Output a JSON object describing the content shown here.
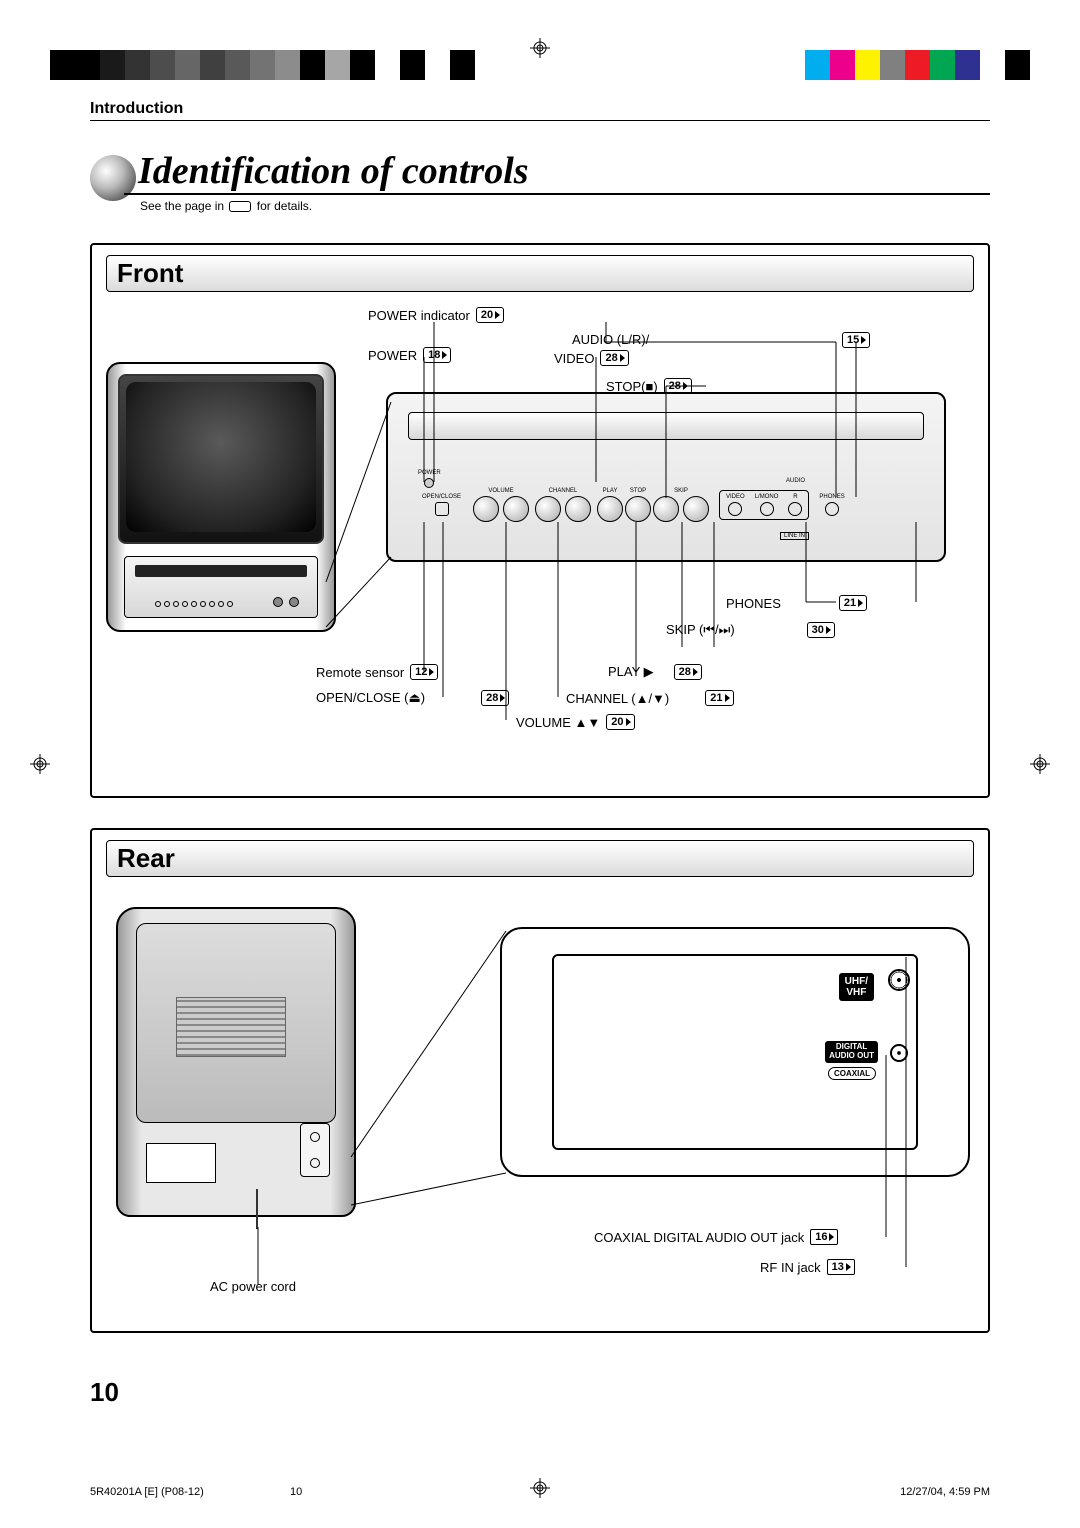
{
  "colorbar": {
    "left": [
      "#000000",
      "#000000",
      "#1a1a1a",
      "#333333",
      "#4d4d4d",
      "#666666",
      "#404040",
      "#595959",
      "#737373",
      "#8c8c8c",
      "#000000",
      "#a6a6a6",
      "#000000",
      "#ffffff",
      "#000000",
      "#ffffff",
      "#000000"
    ],
    "right": [
      "#00aeef",
      "#ec008c",
      "#fff200",
      "#808080",
      "#ed1c24",
      "#00a651",
      "#2e3192",
      "#ffffff",
      "#000000"
    ]
  },
  "header": {
    "section": "Introduction"
  },
  "title": "Identification of controls",
  "see_note": {
    "before": "See the page in",
    "after": "for details."
  },
  "front": {
    "heading": "Front",
    "labels": {
      "power_ind": {
        "text": "POWER indicator",
        "page": "20"
      },
      "power_btn": {
        "text": "POWER",
        "page": "18"
      },
      "audio": {
        "text": "AUDIO (L/R)/",
        "page": "15"
      },
      "video": {
        "text": "VIDEO",
        "page": "28"
      },
      "stop": {
        "text": "STOP(■)",
        "page": "28"
      },
      "phones": {
        "text": "PHONES",
        "page": "21"
      },
      "skip": {
        "text": "SKIP (⏮/⏭)",
        "page": "30"
      },
      "play": {
        "text": "PLAY ▶",
        "page": "28"
      },
      "channel": {
        "text": "CHANNEL (▲/▼)",
        "page": "21"
      },
      "remote": {
        "text": "Remote sensor",
        "page": "12"
      },
      "open": {
        "text": "OPEN/CLOSE (⏏)",
        "page": "28"
      },
      "volume": {
        "text": "VOLUME ▲▼",
        "page": "20"
      }
    },
    "panel_labels": {
      "power": "POWER",
      "openclose": "OPEN/CLOSE",
      "volume": "VOLUME",
      "channel": "CHANNEL",
      "play": "PLAY",
      "stop": "STOP",
      "skip": "SKIP",
      "video": "VIDEO",
      "lmono": "L/MONO",
      "r": "R",
      "audio": "AUDIO",
      "phones": "PHONES",
      "linein": "LINE IN"
    }
  },
  "rear": {
    "heading": "Rear",
    "labels": {
      "uhf": "UHF/\nVHF",
      "digital": "DIGITAL\nAUDIO OUT",
      "coaxial": "COAXIAL",
      "coax_jack": {
        "text": "COAXIAL DIGITAL AUDIO OUT jack",
        "page": "16"
      },
      "rf_jack": {
        "text": "RF IN jack",
        "page": "13"
      },
      "ac_cord": "AC power cord"
    }
  },
  "page_number": "10",
  "footer": {
    "left": "5R40201A [E] (P08-12)",
    "mid": "10",
    "right": "12/27/04, 4:59 PM"
  }
}
